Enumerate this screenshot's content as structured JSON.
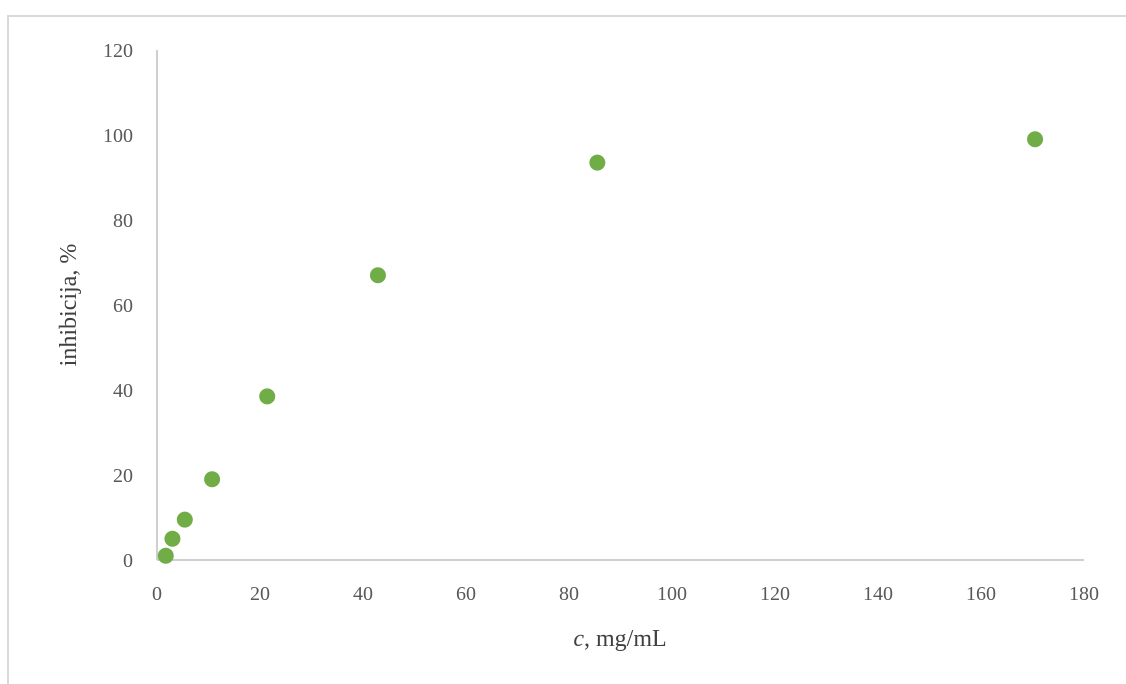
{
  "chart_data": {
    "type": "scatter",
    "title": "",
    "xlabel_italic": "c",
    "xlabel_rest": ", mg/mL",
    "ylabel": "inhibicija, %",
    "xlim": [
      0,
      180
    ],
    "ylim": [
      0,
      120
    ],
    "xticks": [
      0,
      20,
      40,
      60,
      80,
      100,
      120,
      140,
      160,
      180
    ],
    "yticks": [
      0,
      20,
      40,
      60,
      80,
      100,
      120
    ],
    "grid": false,
    "legend": "none",
    "marker_color": "#70ad47",
    "series": [
      {
        "x": [
          1.7,
          3.0,
          5.4,
          10.7,
          21.4,
          42.9,
          85.5,
          170.5
        ],
        "y": [
          1.0,
          5.0,
          9.5,
          19.0,
          38.5,
          67.0,
          93.5,
          99.0
        ]
      }
    ]
  }
}
